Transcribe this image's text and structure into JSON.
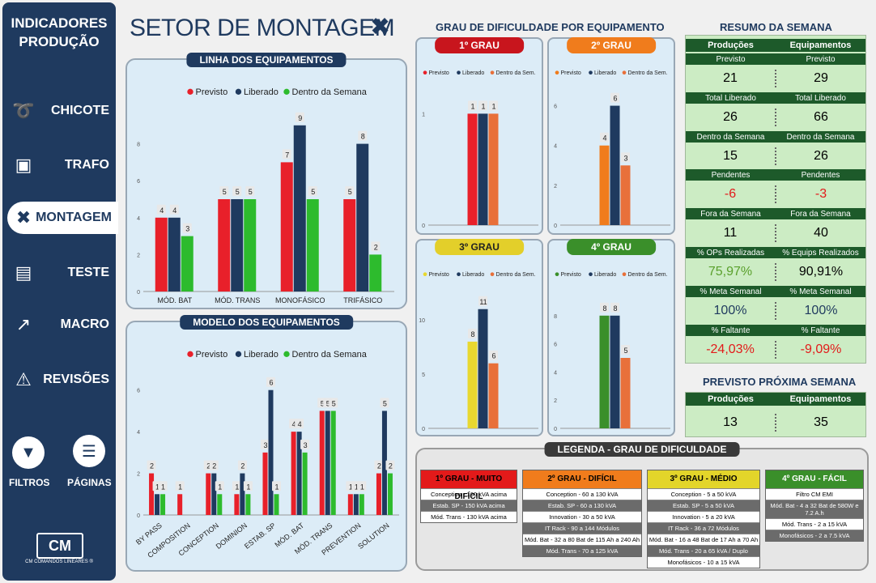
{
  "sidebar": {
    "title_line1": "INDICADORES",
    "title_line2": "PRODUÇÃO",
    "items": [
      {
        "label": "CHICOTE",
        "icon": "cable-icon"
      },
      {
        "label": "TRAFO",
        "icon": "transformer-icon"
      },
      {
        "label": "MONTAGEM",
        "icon": "tools-icon",
        "active": true
      },
      {
        "label": "TESTE",
        "icon": "monitor-icon"
      },
      {
        "label": "MACRO",
        "icon": "chart-up-icon"
      },
      {
        "label": "REVISÕES",
        "icon": "alert-icon"
      }
    ],
    "filtros_label": "FILTROS",
    "paginas_label": "PÁGINAS",
    "logo_text": "CM",
    "logo_caption": "CM COMANDOS LINEARES ®"
  },
  "page_title": "SETOR DE MONTAGEM",
  "colors": {
    "previsto": "#e8202a",
    "liberado": "#1f3a5f",
    "dentro": "#2dbb2d",
    "g2": "#f07c1c",
    "g2b": "#e8703a",
    "g3": "#e8d830",
    "g4": "#3a8f2a"
  },
  "chart_data": [
    {
      "type": "bar",
      "title": "LINHA DOS EQUIPAMENTOS",
      "categories": [
        "MÓD. BAT",
        "MÓD. TRANS",
        "MONOFÁSICO",
        "TRIFÁSICO"
      ],
      "ylim": [
        0,
        10
      ],
      "yticks": [
        0,
        2,
        4,
        6,
        8
      ],
      "series": [
        {
          "name": "Previsto",
          "values": [
            4,
            5,
            7,
            5
          ]
        },
        {
          "name": "Liberado",
          "values": [
            4,
            5,
            9,
            8
          ]
        },
        {
          "name": "Dentro da Semana",
          "values": [
            3,
            5,
            5,
            2
          ]
        }
      ]
    },
    {
      "type": "bar",
      "title": "MODELO DOS EQUIPAMENTOS",
      "categories": [
        "BY PASS",
        "COMPOSITION",
        "CONCEPTION",
        "DOMINION",
        "ESTAB. SP",
        "MÓD. BAT",
        "MÓD. TRANS",
        "PREVENTION",
        "SOLUTION"
      ],
      "ylim": [
        0,
        7
      ],
      "yticks": [
        0,
        2,
        4,
        6
      ],
      "series": [
        {
          "name": "Previsto",
          "values": [
            2,
            1,
            2,
            1,
            3,
            4,
            5,
            1,
            2
          ]
        },
        {
          "name": "Liberado",
          "values": [
            1,
            0,
            2,
            2,
            6,
            4,
            5,
            1,
            5
          ]
        },
        {
          "name": "Dentro da Semana",
          "values": [
            1,
            0,
            1,
            1,
            1,
            3,
            5,
            1,
            2
          ]
        }
      ]
    },
    {
      "type": "bar",
      "title": "1º GRAU",
      "ylim": [
        0,
        1.25
      ],
      "yticks": [
        0,
        1
      ],
      "series": [
        {
          "name": "Previsto",
          "values": [
            1
          ]
        },
        {
          "name": "Liberado",
          "values": [
            1
          ]
        },
        {
          "name": "Dentro da Sem.",
          "values": [
            1
          ]
        }
      ]
    },
    {
      "type": "bar",
      "title": "2º GRAU",
      "ylim": [
        0,
        7
      ],
      "yticks": [
        0,
        2,
        4,
        6
      ],
      "series": [
        {
          "name": "Previsto",
          "values": [
            4
          ]
        },
        {
          "name": "Liberado",
          "values": [
            6
          ]
        },
        {
          "name": "Dentro da Sem.",
          "values": [
            3
          ]
        }
      ]
    },
    {
      "type": "bar",
      "title": "3º GRAU",
      "ylim": [
        0,
        13
      ],
      "yticks": [
        0,
        5,
        10
      ],
      "series": [
        {
          "name": "Previsto",
          "values": [
            8
          ]
        },
        {
          "name": "Liberado",
          "values": [
            11
          ]
        },
        {
          "name": "Dentro da Sem.",
          "values": [
            6
          ]
        }
      ]
    },
    {
      "type": "bar",
      "title": "4º GRAU",
      "ylim": [
        0,
        10
      ],
      "yticks": [
        0,
        2,
        4,
        6,
        8
      ],
      "series": [
        {
          "name": "Previsto",
          "values": [
            8
          ]
        },
        {
          "name": "Liberado",
          "values": [
            8
          ]
        },
        {
          "name": "Dentro da Sem.",
          "values": [
            5
          ]
        }
      ]
    }
  ],
  "grau_title": "GRAU DE DIFICULDADE POR EQUIPAMENTO",
  "resumo": {
    "title": "RESUMO DA SEMANA",
    "col1": "Produções",
    "col2": "Equipamentos",
    "rows": [
      {
        "label": "Previsto",
        "v1": "21",
        "v2": "29"
      },
      {
        "label": "Total Liberado",
        "v1": "26",
        "v2": "66"
      },
      {
        "label": "Dentro da Semana",
        "v1": "15",
        "v2": "26"
      },
      {
        "label": "Pendentes",
        "v1": "-6",
        "v2": "-3"
      },
      {
        "label": "Fora da Semana",
        "v1": "11",
        "v2": "40"
      },
      {
        "label1": "% OPs Realizadas",
        "label2": "% Equips Realizados",
        "v1": "75,97%",
        "v2": "90,91%"
      },
      {
        "label": "% Meta Semanal",
        "v1": "100%",
        "v2": "100%"
      },
      {
        "label": "% Faltante",
        "v1": "-24,03%",
        "v2": "-9,09%"
      }
    ]
  },
  "proxima": {
    "title": "PREVISTO PRÓXIMA SEMANA",
    "col1": "Produções",
    "col2": "Equipamentos",
    "v1": "13",
    "v2": "35"
  },
  "legenda": {
    "title": "LEGENDA - GRAU DE DIFICULDADE",
    "cols": [
      {
        "head": "1º GRAU - MUITO DIFÍCIL",
        "items": [
          "Conception - 160 kVA acima",
          "Estab. SP - 150 kVA acima",
          "Mód. Trans - 130 kVA acima"
        ]
      },
      {
        "head": "2º GRAU - DIFÍCIL",
        "items": [
          "Conception - 60 a 130 kVA",
          "Estab. SP - 60 a 130 kVA",
          "Innovation - 30 a 50 kVA",
          "IT Rack - 90 a 144 Módulos",
          "Mód. Bat - 32 a 80 Bat de 115 Ah a 240 Ah",
          "Mód. Trans - 70 a 125 kVA"
        ]
      },
      {
        "head": "3º GRAU - MÉDIO",
        "items": [
          "Conception - 5 a 50 kVA",
          "Estab. SP - 5 a 50 kVA",
          "Innovation - 5 a 20 kVA",
          "IT Rack - 36 a 72 Módulos",
          "Mód. Bat - 16 a 48 Bat de 17 Ah a 70 Ah",
          "Mód. Trans - 20 a 65 kVA / Duplo",
          "Monofásicos - 10 a 15 kVA"
        ]
      },
      {
        "head": "4º GRAU - FÁCIL",
        "items": [
          "Filtro CM EMI",
          "Mód. Bat - 4 a 32 Bat de 580W e 7.2 A.h",
          "Mód. Trans - 2 a 15 kVA",
          "Monofásicos - 2 a 7.5 kVA"
        ]
      }
    ]
  }
}
